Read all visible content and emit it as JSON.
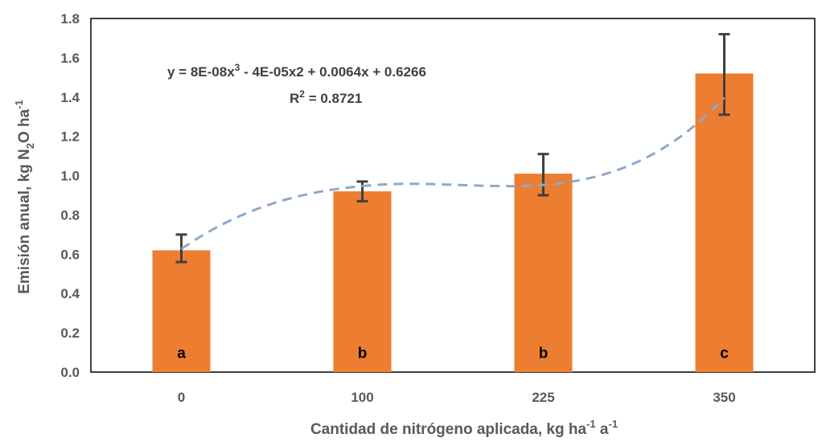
{
  "chart_data": {
    "type": "bar",
    "categories": [
      "0",
      "100",
      "225",
      "350"
    ],
    "values": [
      0.62,
      0.92,
      1.01,
      1.52
    ],
    "error_low": [
      0.56,
      0.87,
      0.9,
      1.31
    ],
    "error_high": [
      0.7,
      0.97,
      1.11,
      1.72
    ],
    "group_letters": [
      "a",
      "b",
      "b",
      "c"
    ],
    "ylim": [
      0,
      1.8
    ],
    "yticks": [
      "0.0",
      "0.2",
      "0.4",
      "0.6",
      "0.8",
      "1.0",
      "1.2",
      "1.4",
      "1.6",
      "1.8"
    ],
    "xlabel": {
      "main": "Cantidad de nitrógeno aplicada, kg ha",
      "sup1": "-1",
      "mid": " a",
      "sup2": "-1"
    },
    "ylabel": {
      "main": "Emisión anual, kg N",
      "sub": "2",
      "tail": "O ha",
      "sup": "-1"
    },
    "trendline": {
      "type": "polynomial",
      "equation": {
        "part1": "y = 8E-08x",
        "sup": "3",
        "part2": " - 4E-05x2 + 0.0064x + 0.6266"
      },
      "r2": {
        "prefix": "R",
        "sup": "2",
        "value": " = 0.8721"
      },
      "coefficients": [
        8e-08,
        -4e-05,
        0.0064,
        0.6266
      ]
    },
    "colors": {
      "bar": "#ED7D31",
      "trendline": "#8EA9C8",
      "errorbar": "#404040",
      "axis": "#000000"
    },
    "grid": false,
    "legend": "none"
  }
}
